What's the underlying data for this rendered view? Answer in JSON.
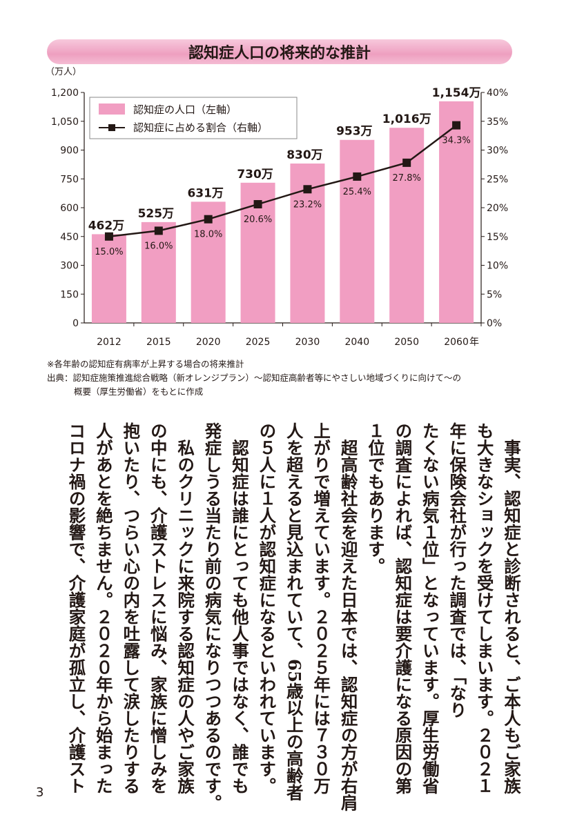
{
  "chart_data": {
    "type": "bar+line",
    "title": "認知症人口の将来的な推計",
    "left_unit": "（万人）",
    "categories": [
      "2012",
      "2015",
      "2020",
      "2025",
      "2030",
      "2040",
      "2050",
      "2060"
    ],
    "x_suffix": "年",
    "series": [
      {
        "name": "認知症の人口（左軸）",
        "type": "bar",
        "axis": "left",
        "color": "#f19ec2",
        "values": [
          462,
          525,
          631,
          730,
          830,
          953,
          1016,
          1154
        ],
        "labels": [
          "462万",
          "525万",
          "631万",
          "730万",
          "830万",
          "953万",
          "1,016万",
          "1,154万"
        ]
      },
      {
        "name": "認知症に占める割合（右軸）",
        "type": "line",
        "axis": "right",
        "color": "#231815",
        "values": [
          15.0,
          16.0,
          18.0,
          20.6,
          23.2,
          25.4,
          27.8,
          34.3
        ],
        "labels": [
          "15.0%",
          "16.0%",
          "18.0%",
          "20.6%",
          "23.2%",
          "25.4%",
          "27.8%",
          "34.3%"
        ]
      }
    ],
    "left_axis": {
      "range": [
        0,
        1200
      ],
      "ticks": [
        "0",
        "150",
        "300",
        "450",
        "600",
        "750",
        "900",
        "1,050",
        "1,200"
      ]
    },
    "right_axis": {
      "range": [
        0,
        40
      ],
      "ticks": [
        "0%",
        "5%",
        "10%",
        "15%",
        "20%",
        "25%",
        "30%",
        "35%",
        "40%"
      ]
    },
    "legend": "top-left",
    "grid": false
  },
  "notes": {
    "note": "※各年齢の認知症有病率が上昇する場合の将来推計",
    "source_line1": "出典：認知症施策推進総合戦略（新オレンジプラン）〜認知症高齢者等にやさしい地域づくりに向けて〜の",
    "source_line2": "概要（厚生労働省）をもとに作成"
  },
  "body_lines": [
    "　事実、認知症と診断されると、ご本人もご家族",
    "も大きなショックを受けてしまいます。２０２１",
    "年に保険会社が行った調査では、「なり",
    "たくない病気１位」となっています。厚生労働省",
    "の調査によれば、認知症は要介護になる原因の第",
    "１位でもあります。",
    "　超高齢社会を迎えた日本では、認知症の方が右肩",
    "上がりで増えています。２０２５年には７３０万",
    "人を超えると見込まれていて、65歳以上の高齢者",
    "の５人に１人が認知症になるといわれています。",
    "　認知症は誰にとっても他人事ではなく、誰でも",
    "発症しうる当たり前の病気になりつつあるのです。",
    "　私のクリニックに来院する認知症の人やご家族",
    "の中にも、介護ストレスに悩み、家族に憎しみを",
    "抱いたり、つらい心の内を吐露して涙したりする",
    "人があとを絶ちません。２０２０年から始まった",
    "コロナ禍の影響で、介護家庭が孤立し、介護スト"
  ],
  "page_number": "3"
}
